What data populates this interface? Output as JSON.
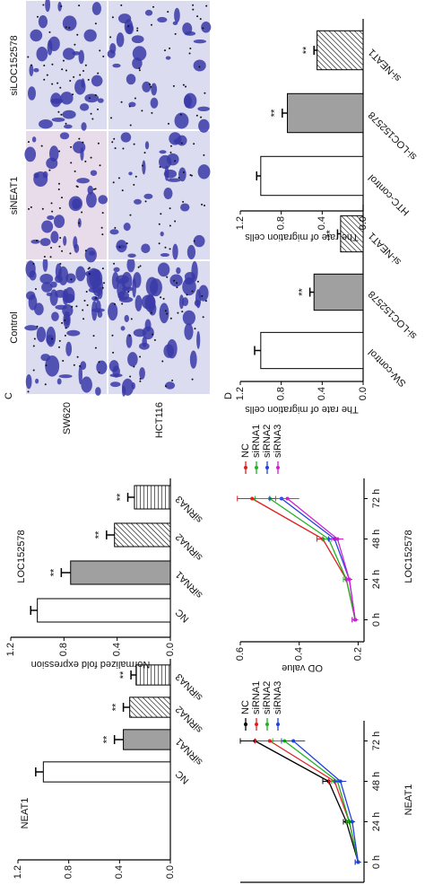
{
  "figure": {
    "panel_labels": [
      "C",
      "D"
    ],
    "image_columns": [
      "Control",
      "siNEAT1",
      "siLOC152578"
    ],
    "image_rows": [
      "SW620",
      "HCT116"
    ]
  },
  "chart_data": [
    {
      "type": "bar",
      "title": "NEAT1",
      "categories": [
        "NC",
        "siRNA1",
        "siRNA2",
        "siRNA3"
      ],
      "values": [
        1.0,
        0.37,
        0.32,
        0.27
      ],
      "errors": [
        0.06,
        0.07,
        0.05,
        0.04
      ],
      "annotations": [
        null,
        "**",
        "**",
        "**"
      ],
      "fills": [
        "white",
        "gray",
        "diagonal-hatch",
        "horizontal-lines"
      ],
      "ylim": [
        0,
        1.2
      ],
      "yticks": [
        {
          "value": 0,
          "label": "0.0"
        },
        0.4,
        0.8,
        1.2
      ]
    },
    {
      "type": "bar",
      "title": "LOC152578",
      "ylabel": "Normalized fold expression",
      "categories": [
        "NC",
        "siRNA1",
        "siRNA2",
        "siRNA3"
      ],
      "values": [
        1.0,
        0.75,
        0.42,
        0.27
      ],
      "errors": [
        0.05,
        0.07,
        0.06,
        0.05
      ],
      "annotations": [
        null,
        "**",
        "**",
        "**"
      ],
      "fills": [
        "white",
        "gray",
        "diagonal-hatch",
        "horizontal-lines"
      ],
      "ylim": [
        0,
        1.2
      ],
      "yticks": [
        {
          "value": 0,
          "label": "0.0"
        },
        0.4,
        0.8,
        1.2
      ]
    },
    {
      "type": "line",
      "xlabel": "NEAT1",
      "categories": [
        "0 h",
        "24 h",
        "48 h",
        "72 h"
      ],
      "ylim": [
        0.18,
        0.6
      ],
      "series": [
        {
          "name": "NC",
          "color": "#000000",
          "values": [
            0.2,
            0.24,
            0.3,
            0.55
          ],
          "errors": [
            0.01,
            0.01,
            0.02,
            0.05
          ]
        },
        {
          "name": "siRNA1",
          "color": "#e02020",
          "values": [
            0.2,
            0.23,
            0.28,
            0.5
          ],
          "errors": [
            0.01,
            0.01,
            0.02,
            0.05
          ]
        },
        {
          "name": "siRNA2",
          "color": "#20b020",
          "values": [
            0.2,
            0.23,
            0.27,
            0.45
          ],
          "errors": [
            0.01,
            0.01,
            0.02,
            0.04
          ]
        },
        {
          "name": "siRNA3",
          "color": "#2040e0",
          "values": [
            0.2,
            0.22,
            0.26,
            0.42
          ],
          "errors": [
            0.01,
            0.01,
            0.02,
            0.04
          ]
        }
      ]
    },
    {
      "type": "line",
      "xlabel": "LOC152578",
      "ylabel": "OD value",
      "categories": [
        "0 h",
        "24 h",
        "48 h",
        "72 h"
      ],
      "ylim": [
        0.18,
        0.6
      ],
      "yticks": [
        0.2,
        0.4,
        0.6
      ],
      "series": [
        {
          "name": "NC",
          "color": "#e02020",
          "values": [
            0.21,
            0.24,
            0.32,
            0.56
          ],
          "errors": [
            0.01,
            0.01,
            0.02,
            0.05
          ]
        },
        {
          "name": "siRNA1",
          "color": "#20b020",
          "values": [
            0.21,
            0.24,
            0.3,
            0.5
          ],
          "errors": [
            0.01,
            0.01,
            0.02,
            0.05
          ]
        },
        {
          "name": "siRNA2",
          "color": "#2040e0",
          "values": [
            0.21,
            0.23,
            0.28,
            0.46
          ],
          "errors": [
            0.01,
            0.01,
            0.02,
            0.04
          ]
        },
        {
          "name": "siRNA3",
          "color": "#d020d0",
          "values": [
            0.21,
            0.23,
            0.27,
            0.44
          ],
          "errors": [
            0.01,
            0.01,
            0.02,
            0.04
          ]
        }
      ]
    },
    {
      "type": "bar",
      "ylabel": "The rate of migration cells",
      "categories": [
        "SW-control",
        "si-LOC152578",
        "si-NEAT1"
      ],
      "values": [
        1.0,
        0.48,
        0.22
      ],
      "errors": [
        0.06,
        0.04,
        0.03
      ],
      "annotations": [
        null,
        "**",
        "**"
      ],
      "fills": [
        "white",
        "gray",
        "diagonal-hatch"
      ],
      "ylim": [
        0,
        1.2
      ],
      "yticks": [
        {
          "value": 0,
          "label": "0.0"
        },
        0.4,
        0.8,
        1.2
      ]
    },
    {
      "type": "bar",
      "ylabel": "The rate of migration cells",
      "categories": [
        "HTC-control",
        "si-LOC152578",
        "si-NEAT1"
      ],
      "values": [
        1.0,
        0.74,
        0.45
      ],
      "errors": [
        0.04,
        0.05,
        0.03
      ],
      "annotations": [
        null,
        "**",
        "**"
      ],
      "fills": [
        "white",
        "gray",
        "diagonal-hatch"
      ],
      "ylim": [
        0,
        1.2
      ],
      "yticks": [
        {
          "value": 0,
          "label": "0.0"
        },
        0.4,
        0.8,
        1.2
      ]
    }
  ]
}
